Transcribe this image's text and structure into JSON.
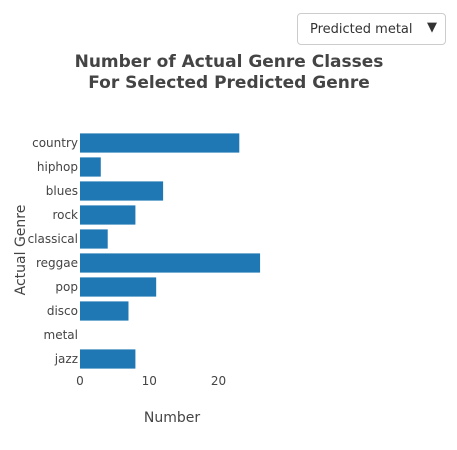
{
  "dropdown": {
    "selected": "Predicted metal",
    "arrow_icon": "▼"
  },
  "chart_data": {
    "type": "bar",
    "orientation": "horizontal",
    "title": [
      "Number of Actual Genre Classes",
      "For Selected Predicted Genre"
    ],
    "xlabel": "Number",
    "ylabel": "Actual Genre",
    "categories": [
      "country",
      "hiphop",
      "blues",
      "rock",
      "classical",
      "reggae",
      "pop",
      "disco",
      "metal",
      "jazz"
    ],
    "values": [
      23,
      3,
      12,
      8,
      4,
      26,
      11,
      7,
      0,
      8
    ],
    "xlim": [
      0,
      27
    ],
    "xticks": [
      0,
      10,
      20
    ],
    "bar_color": "#1f77b4"
  }
}
